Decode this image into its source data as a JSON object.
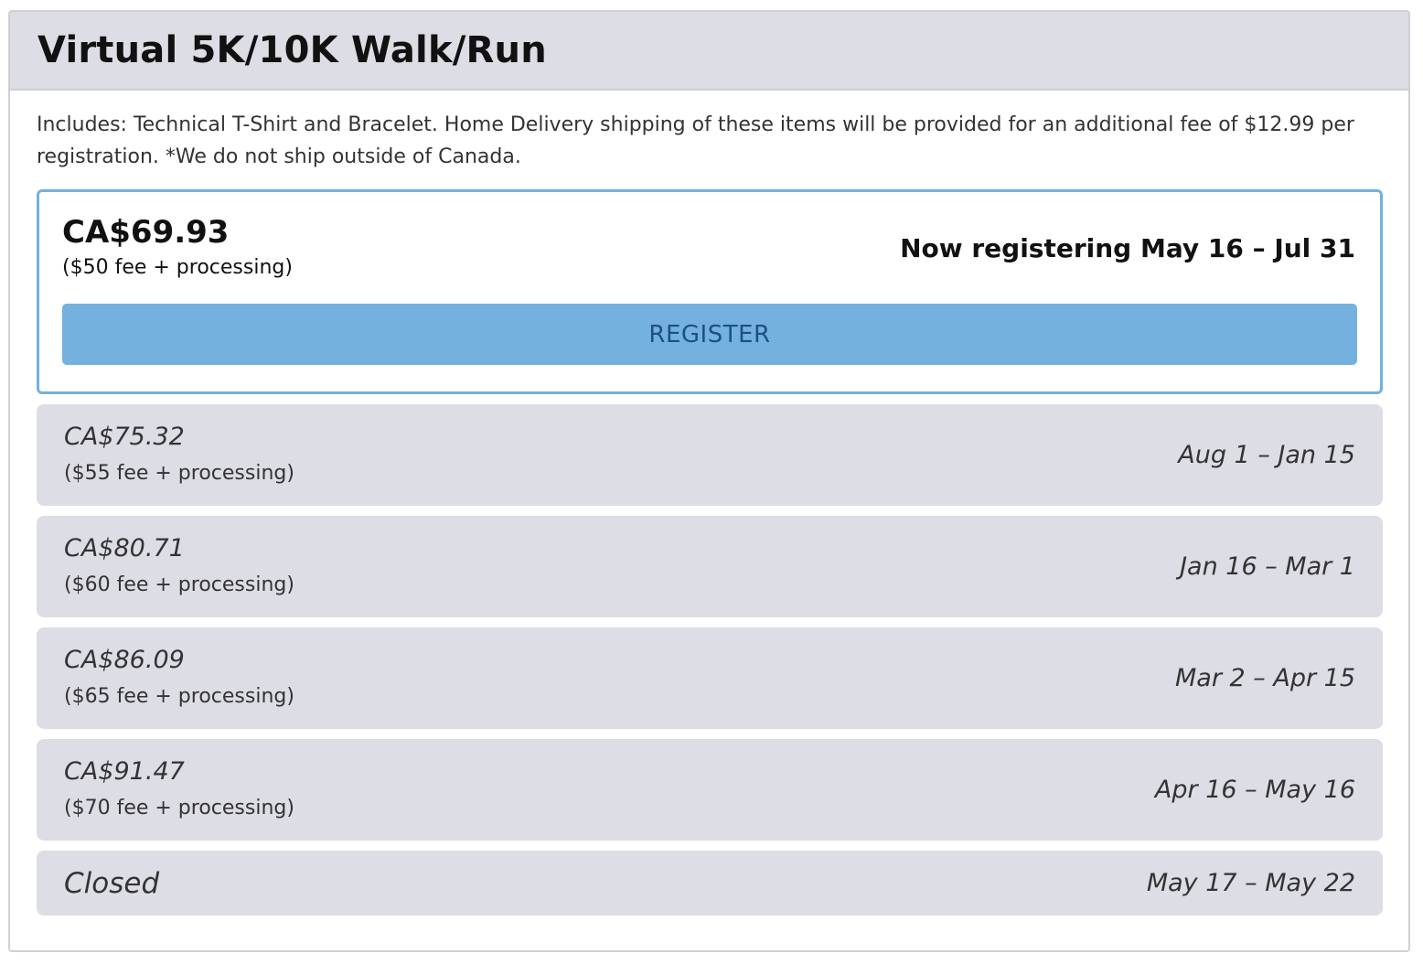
{
  "panel": {
    "title": "Virtual 5K/10K Walk/Run",
    "description": "Includes: Technical T-Shirt and Bracelet. Home Delivery shipping of these items will be provided for an additional fee of $12.99 per registration. *We do not ship outside of Canada."
  },
  "active_tier": {
    "price": "CA$69.93",
    "fee": "($50 fee + processing)",
    "dates": "Now registering May 16 – Jul 31",
    "button_label": "REGISTER"
  },
  "tiers": [
    {
      "price": "CA$75.32",
      "fee": "($55 fee + processing)",
      "dates": "Aug 1 – Jan 15"
    },
    {
      "price": "CA$80.71",
      "fee": "($60 fee + processing)",
      "dates": "Jan 16 – Mar 1"
    },
    {
      "price": "CA$86.09",
      "fee": "($65 fee + processing)",
      "dates": "Mar 2 – Apr 15"
    },
    {
      "price": "CA$91.47",
      "fee": "($70 fee + processing)",
      "dates": "Apr 16 – May 16"
    }
  ],
  "closed_tier": {
    "label": "Closed",
    "dates": "May 17 – May 22"
  },
  "colors": {
    "accent": "#74b1de",
    "button_text": "#1d4f86",
    "muted_bg": "#dddde5"
  }
}
